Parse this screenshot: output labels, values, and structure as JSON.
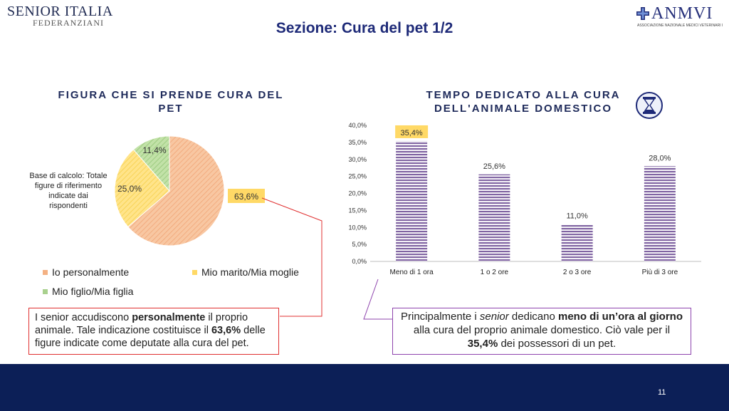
{
  "header": {
    "logo_left_line1": "SENIOR ITALIA",
    "logo_left_line2": "FEDERANZIANI",
    "logo_right_brand": "ANMVI",
    "logo_right_sub": "ASSOCIAZIONE NAZIONALE MEDICI VETERINARI ITALIANI",
    "title": "Sezione: Cura del pet 1/2"
  },
  "pie_note": "Base di calcolo: Totale figure di riferimento indicate dai rispondenti",
  "boxes": {
    "left": {
      "t1": "I senior accudiscono ",
      "b1": "personalmente",
      "t2": " il proprio animale. Tale indicazione costituisce il ",
      "b2": "63,6%",
      "t3": " delle figure indicate come deputate alla cura del pet."
    },
    "right": {
      "t1": "Principalmente i ",
      "i1": "senior",
      "t2": " dedicano ",
      "b1": "meno di un’ora al giorno",
      "t3": " alla cura del proprio animale domestico. Ciò vale per il ",
      "b2": "35,4%",
      "t4": " dei possessori di un pet."
    }
  },
  "footer": {
    "page_number": "11"
  },
  "chart_data": [
    {
      "type": "pie",
      "title": "FIGURA CHE SI PRENDE CURA DEL PET",
      "categories": [
        "Io personalmente",
        "Mio marito/Mia moglie",
        "Mio figlio/Mia figlia"
      ],
      "values": [
        63.6,
        25.0,
        11.4
      ],
      "labels": [
        "63,6%",
        "25,0%",
        "11,4%"
      ],
      "colors": [
        "#f4b183",
        "#ffd966",
        "#a9d18e"
      ],
      "highlight_color": "#ffd966",
      "legend_position": "bottom"
    },
    {
      "type": "bar",
      "title": "TEMPO DEDICATO ALLA CURA DELL'ANIMALE DOMESTICO",
      "categories": [
        "Meno di 1 ora",
        "1 o 2 ore",
        "2 o 3 ore",
        "Più di  3 ore"
      ],
      "values": [
        35.4,
        25.6,
        11.0,
        28.0
      ],
      "labels": [
        "35,4%",
        "25,6%",
        "11,0%",
        "28,0%"
      ],
      "yticks": [
        "0,0%",
        "5,0%",
        "10,0%",
        "15,0%",
        "20,0%",
        "25,0%",
        "30,0%",
        "35,0%",
        "40,0%"
      ],
      "ylim": [
        0,
        40
      ],
      "color": "#8064a2",
      "highlight_color": "#ffd966",
      "grid": false
    }
  ]
}
